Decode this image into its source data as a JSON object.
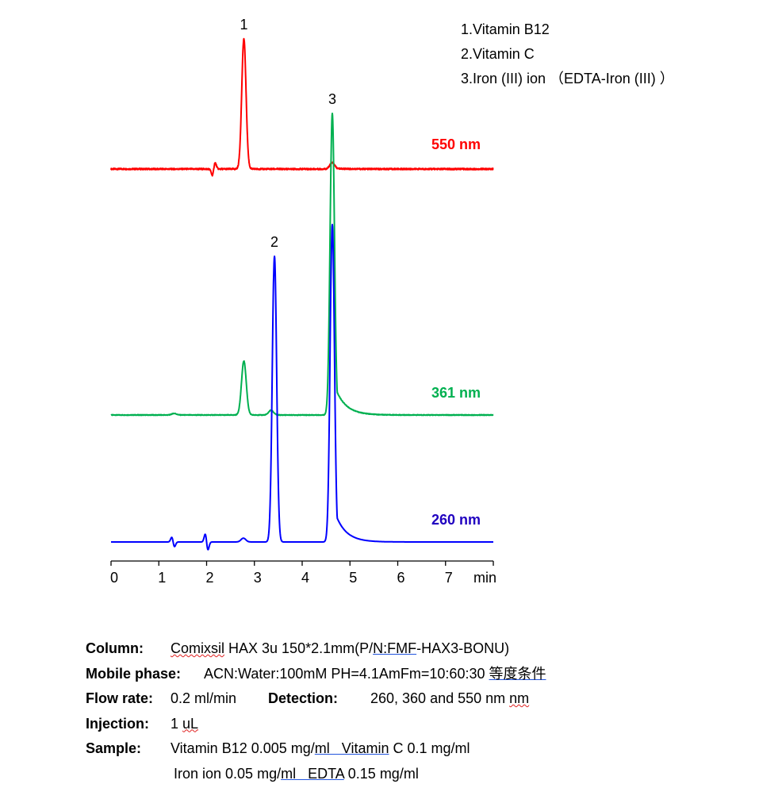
{
  "chart_data": {
    "type": "line",
    "title": "",
    "xlabel": "min",
    "ylabel": "",
    "xlim": [
      0,
      8
    ],
    "x_ticks": [
      "0",
      "1",
      "2",
      "3",
      "4",
      "5",
      "6",
      "7"
    ],
    "grid": false,
    "y_units": "relative peak height (% of largest peak)",
    "series": [
      {
        "name": "550 nm",
        "color": "#ff0000",
        "peaks": [
          {
            "label": "1",
            "rt": 2.78,
            "height": 41
          },
          {
            "label": "",
            "rt": 4.63,
            "height": 2
          }
        ],
        "disturbances": [
          {
            "rt": 2.15,
            "height": -2
          }
        ]
      },
      {
        "name": "361 nm",
        "color": "#00b050",
        "peaks": [
          {
            "label": "",
            "rt": 1.32,
            "height": 0.5
          },
          {
            "label": "",
            "rt": 2.78,
            "height": 17
          },
          {
            "label": "",
            "rt": 3.35,
            "height": 1.5
          },
          {
            "label": "3",
            "rt": 4.63,
            "height": 95
          }
        ],
        "disturbances": []
      },
      {
        "name": "260 nm",
        "color": "#0000ff",
        "peaks": [
          {
            "label": "",
            "rt": 2.77,
            "height": 1.2
          },
          {
            "label": "2",
            "rt": 3.42,
            "height": 90
          },
          {
            "label": "",
            "rt": 4.63,
            "height": 100
          }
        ],
        "disturbances": [
          {
            "rt": 1.3,
            "height": 1.5
          },
          {
            "rt": 2.0,
            "height": 2.5
          }
        ]
      }
    ],
    "series_label_colors": {
      "550 nm": "#ff0000",
      "361 nm": "#00b050",
      "260 nm": "#2000c0"
    }
  },
  "legend": {
    "items": [
      "1.Vitamin B12",
      "2.Vitamin C",
      "3.Iron (III) ion （EDTA-Iron (III) ）"
    ]
  },
  "conditions": {
    "column_label": "Column:",
    "column_value_a": "Comixsil",
    "column_value_b": " HAX 3u 150*2.1mm(P/",
    "column_value_c": "N:FMF",
    "column_value_d": "-HAX3-BONU)",
    "mobile_label": "Mobile phase:",
    "mobile_value": "ACN:Water:100mM PH=4.1AmFm=10:60:30 ",
    "mobile_note": "等度条件",
    "flow_label": "Flow rate:",
    "flow_value": "0.2 ml/min",
    "detection_label": "Detection:",
    "detection_value": "260, 360 and 550 nm ",
    "detection_unit": "nm",
    "injection_label": "Injection:",
    "injection_value_a": "1 ",
    "injection_value_b": "uL",
    "sample_label": "Sample:",
    "sample_line1_a": "Vitamin B12 0.005 mg/",
    "sample_line1_b": "ml   Vitamin",
    "sample_line1_c": " C 0.1 mg/ml",
    "sample_line2_a": "Iron ion 0.05 mg/",
    "sample_line2_b": "ml   EDTA",
    "sample_line2_c": " 0.15 mg/ml"
  }
}
